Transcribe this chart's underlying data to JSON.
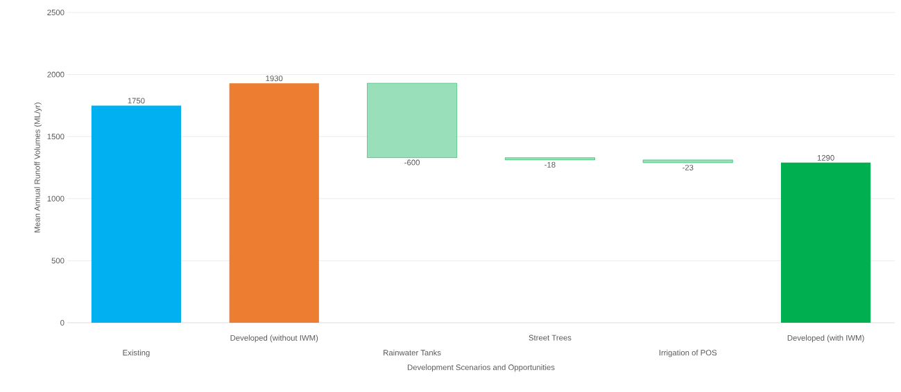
{
  "chart_data": {
    "type": "bar",
    "xlabel": "Development Scenarios and Opportunities",
    "ylabel": "Mean Annual Runoff Volumes  (ML/yr)",
    "categories": [
      "Existing",
      "Developed (without IWM)",
      "Rainwater Tanks",
      "Street Trees",
      "Irrigation of POS",
      "Developed (with IWM)"
    ],
    "values": [
      1750,
      1930,
      -600,
      -18,
      -23,
      1290
    ],
    "base": [
      0,
      0,
      1930,
      1330,
      1312,
      0
    ],
    "colors": [
      "#00b0f0",
      "#ed7d31",
      "#00b050",
      "#00b050",
      "#00b050",
      "#00b050"
    ],
    "value_labels": [
      "1750",
      "1930",
      "-600",
      "-18",
      "-23",
      "1290"
    ],
    "ylim": [
      0,
      2500
    ],
    "yticks": [
      0,
      500,
      1000,
      1500,
      2000,
      2500
    ],
    "grid": "y"
  }
}
